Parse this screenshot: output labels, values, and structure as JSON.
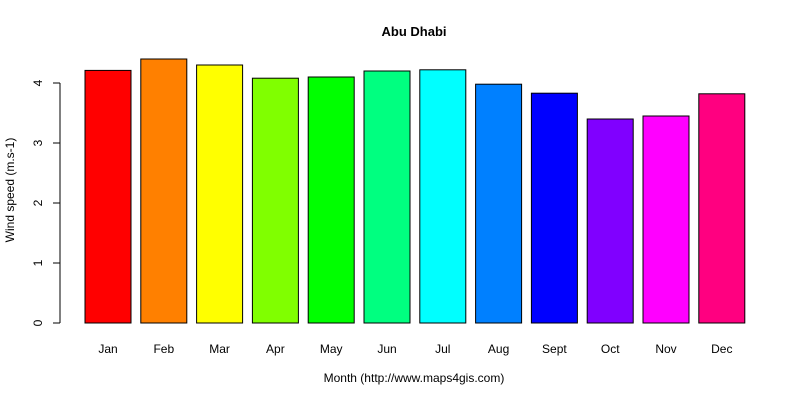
{
  "chart_data": {
    "type": "bar",
    "title": "Abu Dhabi",
    "xlabel": "Month (http://www.maps4gis.com)",
    "ylabel": "Wind speed (m.s-1)",
    "categories": [
      "Jan",
      "Feb",
      "Mar",
      "Apr",
      "May",
      "Jun",
      "Jul",
      "Aug",
      "Sept",
      "Oct",
      "Nov",
      "Dec"
    ],
    "values": [
      4.21,
      4.4,
      4.3,
      4.08,
      4.1,
      4.2,
      4.22,
      3.98,
      3.83,
      3.4,
      3.45,
      3.82
    ],
    "colors": [
      "#FF0000",
      "#FF8000",
      "#FFFF00",
      "#80FF00",
      "#00FF00",
      "#00FF80",
      "#00FFFF",
      "#0080FF",
      "#0000FF",
      "#8000FF",
      "#FF00FF",
      "#FF0080"
    ],
    "ylim": [
      0,
      4.4
    ],
    "yticks": [
      0,
      1,
      2,
      3,
      4
    ],
    "grid": false,
    "legend": "none"
  }
}
